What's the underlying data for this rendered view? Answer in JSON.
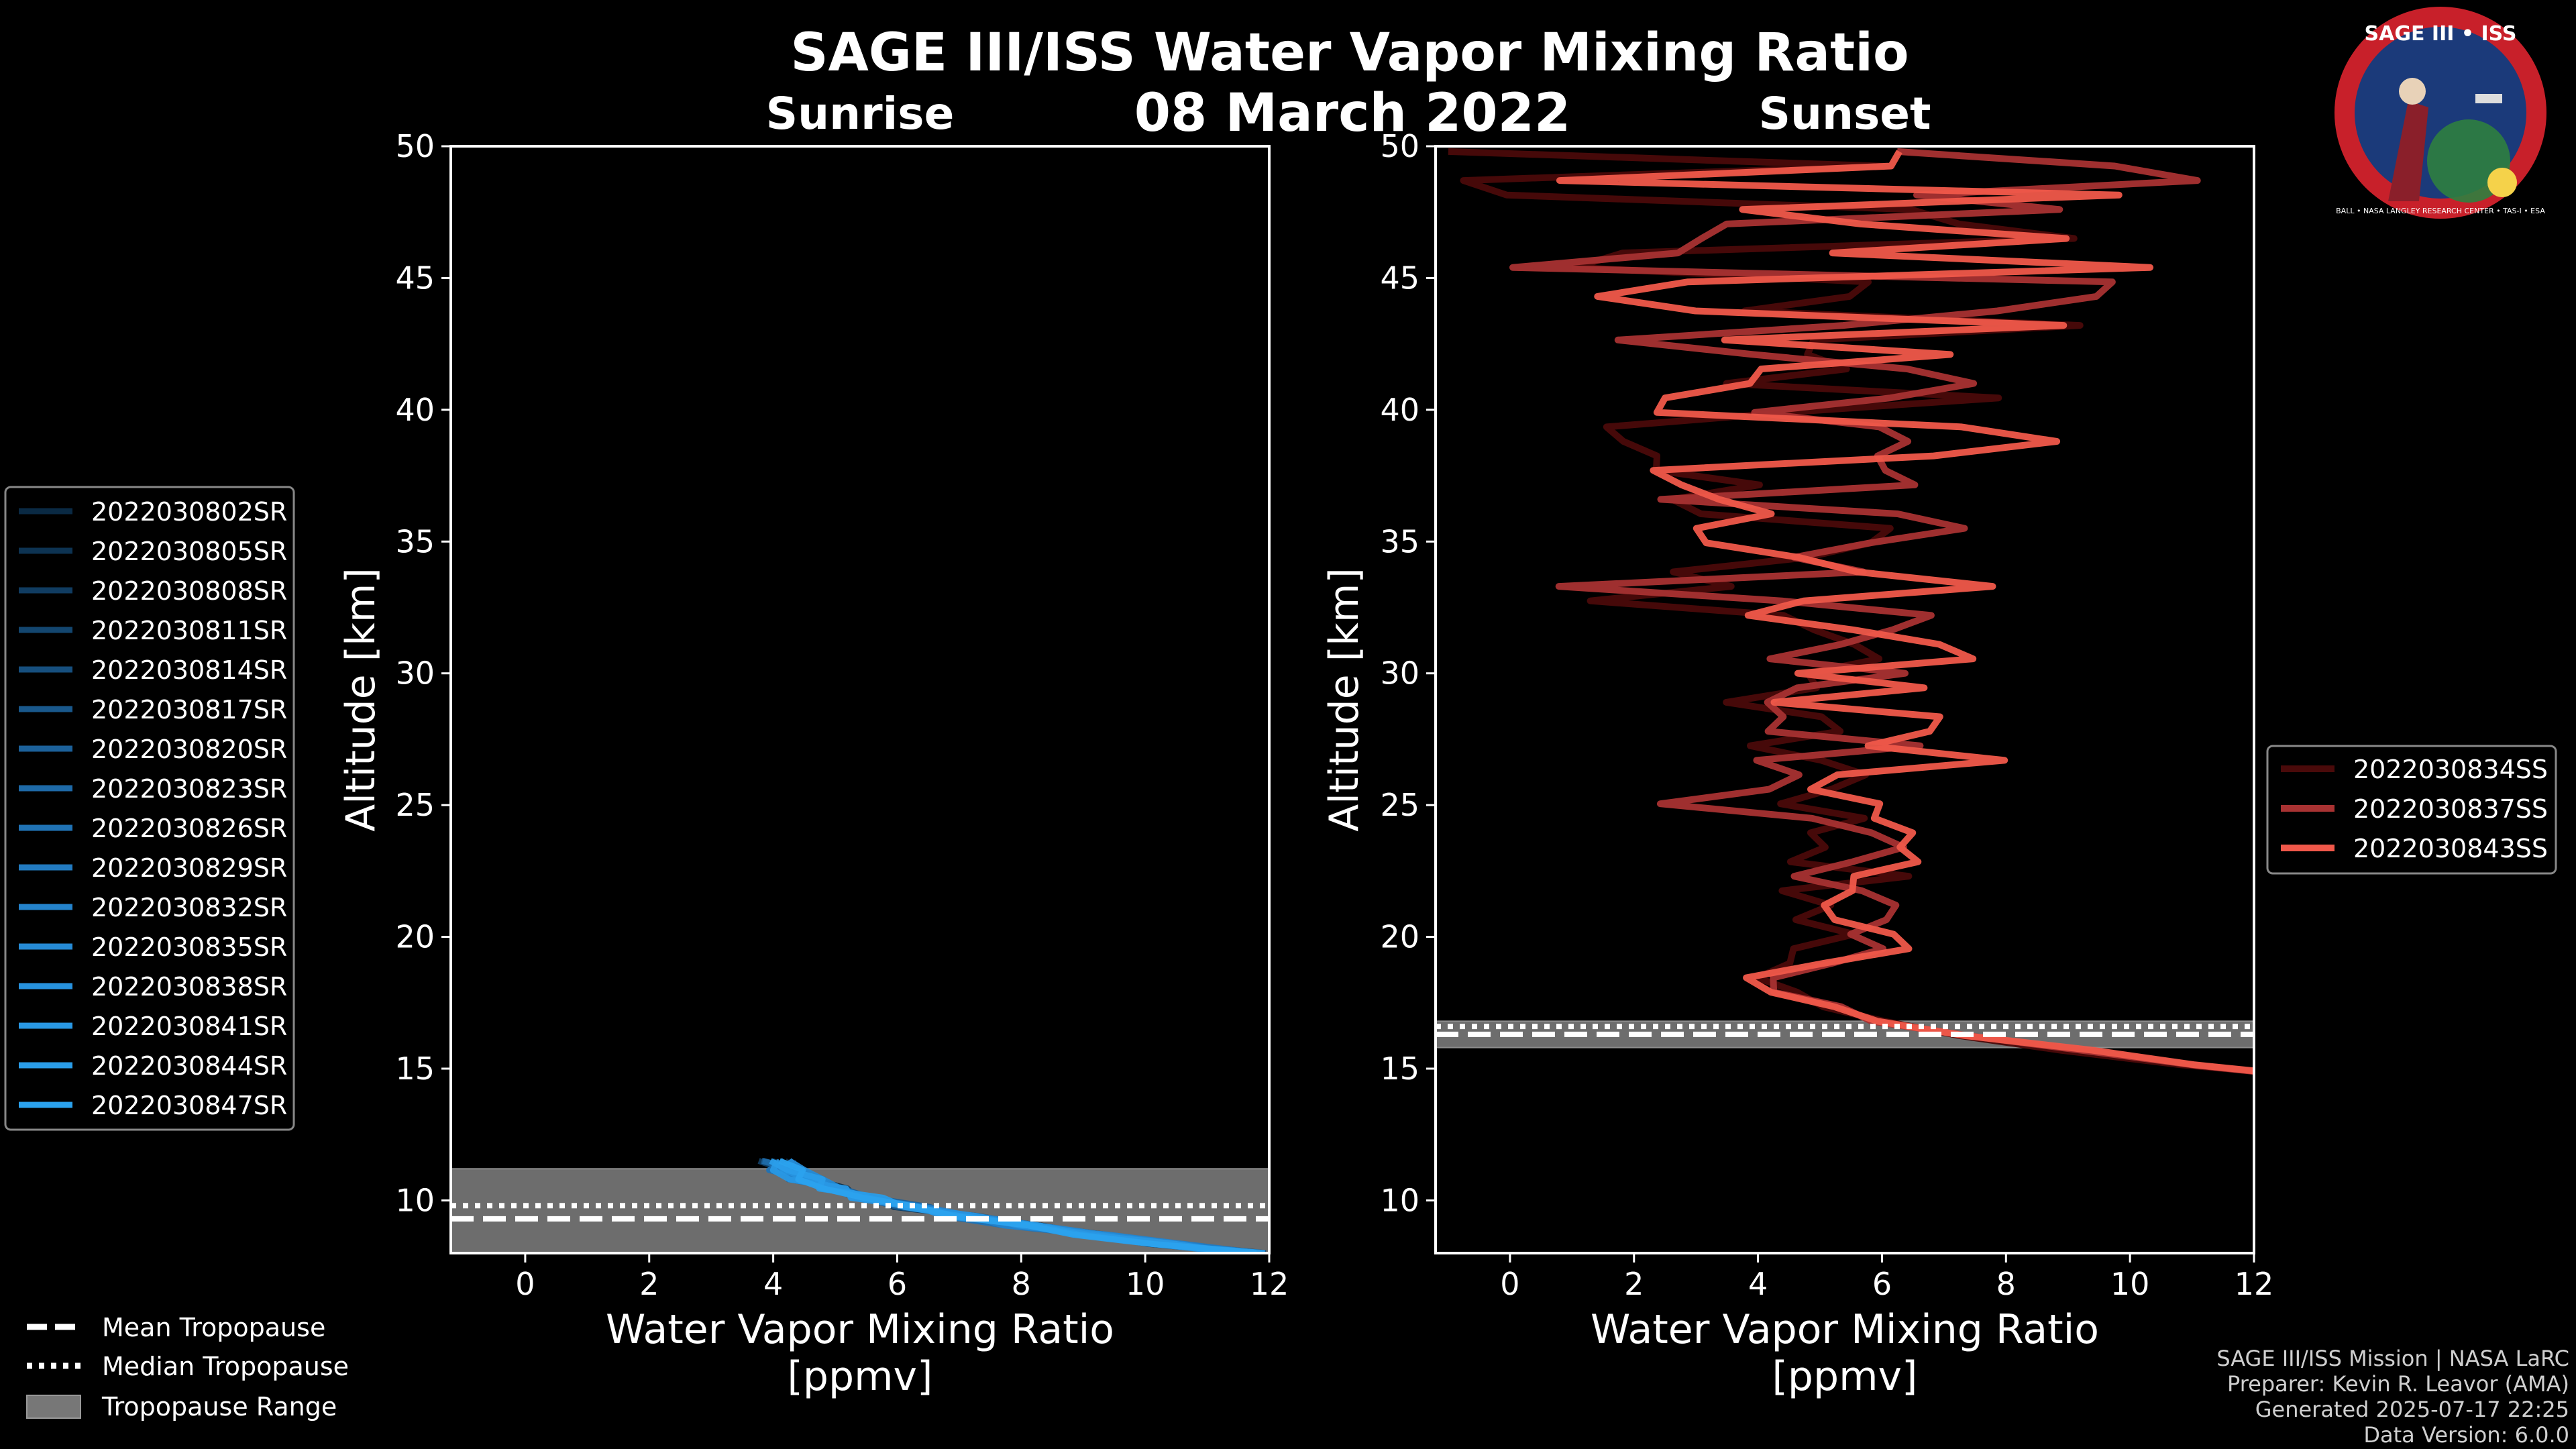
{
  "chart_data": {
    "type": "line",
    "title": "SAGE III/ISS Water Vapor Mixing Ratio",
    "date": "08 March 2022",
    "xlim": [
      -1.2,
      12
    ],
    "ylim": [
      8,
      50
    ],
    "xticks": [
      0,
      2,
      4,
      6,
      8,
      10,
      12
    ],
    "yticks": [
      10,
      15,
      20,
      25,
      30,
      35,
      40,
      45,
      50
    ],
    "panels": [
      {
        "title": "Sunrise",
        "xlabel_line1": "Water Vapor Mixing Ratio",
        "xlabel_line2": "[ppmv]",
        "ylabel": "Altitude [km]",
        "tropopause": {
          "mean": 9.3,
          "median": 9.8,
          "range": [
            8,
            11.2
          ]
        },
        "series": [
          {
            "name": "2022030802SR",
            "color": "#0a2a44",
            "center": 5.0
          },
          {
            "name": "2022030805SR",
            "color": "#0d3352",
            "center": 4.6
          },
          {
            "name": "2022030808SR",
            "color": "#103c61",
            "center": 5.3
          },
          {
            "name": "2022030811SR",
            "color": "#13466f",
            "center": 4.9
          },
          {
            "name": "2022030814SR",
            "color": "#164f7e",
            "center": 5.6
          },
          {
            "name": "2022030817SR",
            "color": "#19588c",
            "center": 4.4
          },
          {
            "name": "2022030820SR",
            "color": "#1c619a",
            "center": 5.1
          },
          {
            "name": "2022030823SR",
            "color": "#1e6aa8",
            "center": 4.8
          },
          {
            "name": "2022030826SR",
            "color": "#2073b5",
            "center": 5.4
          },
          {
            "name": "2022030829SR",
            "color": "#227bc1",
            "center": 4.7
          },
          {
            "name": "2022030832SR",
            "color": "#2483cc",
            "center": 5.2
          },
          {
            "name": "2022030835SR",
            "color": "#268bd6",
            "center": 4.5
          },
          {
            "name": "2022030838SR",
            "color": "#2792de",
            "center": 5.0
          },
          {
            "name": "2022030841SR",
            "color": "#2998e4",
            "center": 5.5
          },
          {
            "name": "2022030844SR",
            "color": "#2a9de9",
            "center": 4.9
          },
          {
            "name": "2022030847SR",
            "color": "#2ba2ee",
            "center": 5.2
          }
        ]
      },
      {
        "title": "Sunset",
        "xlabel_line1": "Water Vapor Mixing Ratio",
        "xlabel_line2": "[ppmv]",
        "ylabel": "Altitude [km]",
        "tropopause": {
          "mean": 16.3,
          "median": 16.6,
          "range": [
            15.8,
            16.8
          ]
        },
        "series": [
          {
            "name": "2022030834SS",
            "color": "#4a0a0a",
            "center": 4.8
          },
          {
            "name": "2022030837SS",
            "color": "#a83232",
            "center": 5.3
          },
          {
            "name": "2022030843SS",
            "color": "#f0584a",
            "center": 5.6
          }
        ]
      }
    ],
    "tropopause_legend": [
      "Mean Tropopause",
      "Median Tropopause",
      "Tropopause Range"
    ]
  },
  "logo": {
    "text_top": "SAGE III • ISS",
    "text_ring": "BALL • NASA LANGLEY RESEARCH CENTER • TAS-I • ESA"
  },
  "credits": {
    "line1": "SAGE III/ISS Mission | NASA LaRC",
    "line2": "Preparer: Kevin R. Leavor (AMA)",
    "line3": "Generated 2025-07-17 22:25",
    "line4": "Data Version: 6.0.0"
  }
}
